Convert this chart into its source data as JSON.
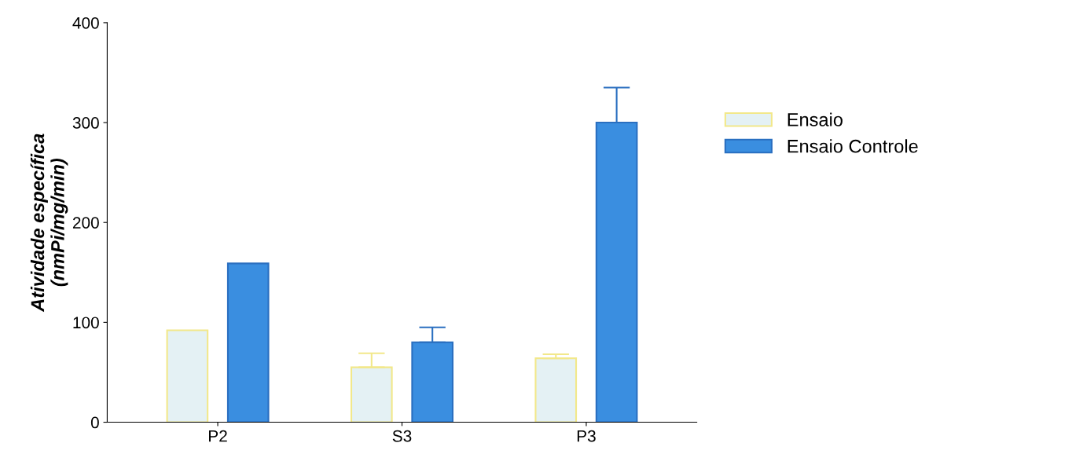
{
  "chart_data": {
    "type": "bar",
    "ylabel": "Atividade específica\n(nmPi/mg/min)",
    "categories": [
      "P2",
      "S3",
      "P3"
    ],
    "series": [
      {
        "name": "Ensaio",
        "color": "#e4f1f4",
        "values": [
          92,
          55,
          64
        ],
        "errors": [
          null,
          14,
          4
        ]
      },
      {
        "name": "Ensaio Controle",
        "color": "#3a8ee0",
        "values": [
          159,
          80,
          300
        ],
        "errors": [
          null,
          15,
          35
        ]
      }
    ],
    "ylim": [
      0,
      400
    ],
    "yticks": [
      0,
      100,
      200,
      300,
      400
    ],
    "grid": false,
    "legend": "right"
  }
}
